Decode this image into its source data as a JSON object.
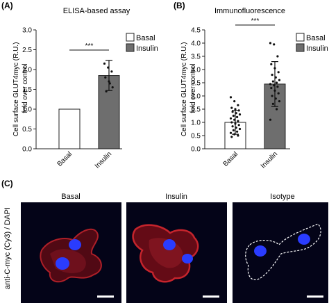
{
  "panels": {
    "A": "(A)",
    "B": "(B)",
    "C": "(C)"
  },
  "chart_data": [
    {
      "type": "bar",
      "title": "ELISA-based assay",
      "ylabel": "Cell surface GLUT4myc (R.U.) fold over control",
      "ylabel_lines": [
        "Cell surface GLUT4myc (R.U.)",
        "fold over control"
      ],
      "categories": [
        "Basal",
        "Insulin"
      ],
      "values": [
        1.0,
        1.85
      ],
      "errors": [
        0,
        0.38
      ],
      "bar_colors": [
        "#ffffff",
        "#6e6e6e"
      ],
      "ylim": [
        0,
        3.0
      ],
      "yticks": [
        "0.0",
        "0.5",
        "1.0",
        "1.5",
        "2.0",
        "2.5",
        "3.0"
      ],
      "ytick_values": [
        0,
        0.5,
        1.0,
        1.5,
        2.0,
        2.5,
        3.0
      ],
      "significance": "***",
      "legend": [
        "Basal",
        "Insulin"
      ],
      "points": [
        [],
        [
          2.15,
          2.05,
          1.95,
          1.8,
          1.7,
          1.55,
          1.45,
          1.65
        ]
      ]
    },
    {
      "type": "bar",
      "title": "Immunofluorescence",
      "ylabel": "Cell surface GLUT4myc (R.U.) fold over control",
      "ylabel_lines": [
        "Cell surface GLUT4myc (R.U.)",
        "fold over control"
      ],
      "categories": [
        "Basal",
        "Insulin"
      ],
      "values": [
        1.0,
        2.45
      ],
      "errors": [
        0.45,
        0.85
      ],
      "bar_colors": [
        "#ffffff",
        "#6e6e6e"
      ],
      "ylim": [
        0,
        4.5
      ],
      "yticks": [
        "0.0",
        "0.5",
        "1.0",
        "1.5",
        "2.0",
        "2.5",
        "3.0",
        "3.5",
        "4.0",
        "4.5"
      ],
      "ytick_values": [
        0,
        0.5,
        1.0,
        1.5,
        2.0,
        2.5,
        3.0,
        3.5,
        4.0,
        4.5
      ],
      "significance": "***",
      "legend": [
        "Basal",
        "Insulin"
      ],
      "points": [
        [
          1.95,
          1.8,
          1.65,
          1.55,
          1.5,
          1.45,
          1.4,
          1.35,
          1.3,
          1.25,
          1.2,
          1.15,
          1.1,
          1.05,
          1.0,
          0.95,
          0.9,
          0.85,
          0.8,
          0.75,
          0.7,
          0.65,
          0.6,
          0.55,
          0.5,
          0.45
        ],
        [
          4.0,
          3.95,
          3.5,
          3.2,
          3.05,
          2.9,
          2.8,
          2.7,
          2.6,
          2.55,
          2.5,
          2.45,
          2.4,
          2.35,
          2.3,
          2.2,
          2.1,
          2.0,
          1.9,
          1.8,
          1.7,
          1.5,
          1.1
        ]
      ]
    }
  ],
  "microscopy": {
    "ylabel": "anti-C-myc (Cy3) / DAPI",
    "images": [
      {
        "label": "Basal"
      },
      {
        "label": "Insulin"
      },
      {
        "label": "Isotype"
      }
    ],
    "colors": {
      "background": "#040418",
      "membrane": "#c0222a",
      "nucleus": "#2a3cff",
      "outline": "#ffffff"
    }
  }
}
